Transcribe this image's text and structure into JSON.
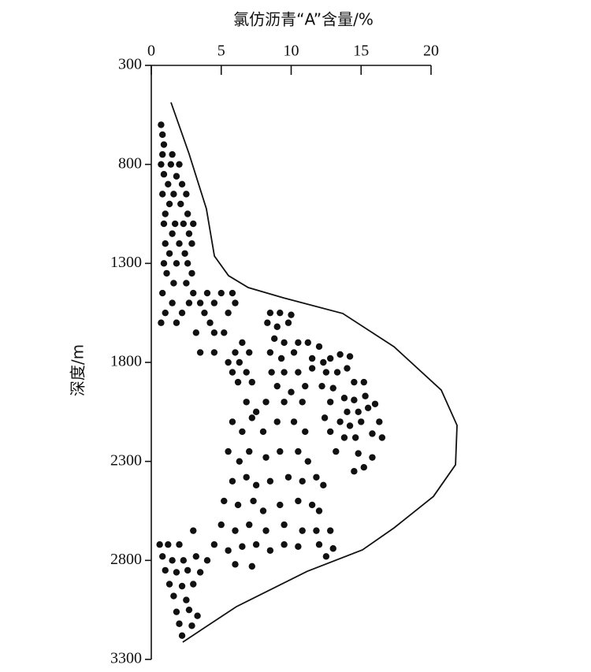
{
  "chart_data": {
    "type": "scatter",
    "title": "氯仿沥青“A”含量/%",
    "y_label": "深度/m",
    "xaxis_position": "top",
    "xlim": [
      0,
      20
    ],
    "xticks": [
      0,
      5,
      10,
      15,
      20
    ],
    "ylim": [
      3300,
      300
    ],
    "yticks": [
      300,
      800,
      1300,
      1800,
      2300,
      2800,
      3300
    ],
    "color": "#111111",
    "x": [
      0.7,
      0.8,
      0.9,
      0.8,
      1.5,
      0.7,
      1.4,
      2.0,
      0.9,
      1.8,
      1.2,
      2.2,
      0.8,
      1.6,
      2.5,
      1.3,
      2.1,
      1.0,
      2.6,
      0.9,
      1.7,
      2.3,
      3.0,
      1.5,
      2.7,
      1.0,
      2.0,
      2.9,
      1.3,
      2.4,
      0.9,
      1.8,
      2.6,
      1.1,
      2.9,
      1.6,
      2.5,
      0.8,
      3.0,
      1.5,
      2.7,
      1.0,
      2.2,
      0.7,
      1.8,
      3.5,
      4.0,
      3.8,
      4.5,
      5.0,
      4.2,
      5.5,
      5.8,
      6.0,
      3.2,
      4.5,
      5.2,
      3.5,
      4.5,
      6.0,
      6.5,
      5.5,
      6.3,
      7.0,
      5.8,
      6.8,
      6.2,
      7.2,
      8.5,
      9.2,
      10.0,
      8.3,
      9.0,
      9.8,
      8.8,
      9.5,
      10.5,
      11.2,
      8.5,
      9.3,
      10.2,
      11.5,
      12.0,
      8.6,
      9.5,
      10.5,
      11.5,
      12.3,
      9.0,
      10.0,
      11.0,
      8.2,
      9.5,
      10.8,
      7.5,
      6.8,
      12.8,
      13.5,
      14.2,
      12.5,
      13.3,
      14.0,
      12.2,
      13.0,
      14.5,
      15.2,
      13.8,
      14.5,
      15.3,
      14.0,
      14.8,
      15.5,
      16.0,
      13.5,
      14.2,
      15.0,
      16.3,
      12.8,
      13.8,
      14.6,
      15.8,
      16.5,
      13.2,
      14.8,
      15.8,
      14.5,
      15.2,
      12.4,
      12.8,
      5.8,
      6.5,
      7.2,
      8.0,
      9.0,
      10.2,
      11.0,
      5.5,
      6.3,
      7.0,
      8.2,
      9.2,
      10.5,
      11.2,
      5.8,
      6.8,
      7.5,
      8.5,
      9.8,
      10.8,
      11.8,
      12.3,
      5.2,
      6.2,
      7.3,
      8.0,
      9.2,
      10.5,
      11.5,
      12.0,
      5.0,
      6.0,
      7.0,
      8.2,
      9.5,
      10.8,
      11.8,
      12.8,
      4.5,
      5.5,
      6.5,
      7.5,
      8.5,
      9.5,
      10.5,
      12.0,
      13.0,
      12.5,
      6.0,
      7.2,
      4.0,
      3.0,
      0.6,
      1.2,
      2.0,
      0.8,
      1.5,
      2.3,
      3.2,
      1.0,
      1.8,
      2.6,
      3.5,
      1.3,
      2.2,
      3.0,
      1.6,
      2.5,
      1.8,
      2.7,
      3.3,
      2.0,
      2.9,
      2.2
    ],
    "values": [
      600,
      650,
      700,
      750,
      750,
      800,
      800,
      800,
      850,
      860,
      900,
      900,
      950,
      950,
      950,
      1000,
      1000,
      1050,
      1050,
      1100,
      1100,
      1100,
      1100,
      1150,
      1150,
      1200,
      1200,
      1200,
      1250,
      1250,
      1300,
      1300,
      1300,
      1350,
      1350,
      1400,
      1400,
      1450,
      1450,
      1500,
      1500,
      1550,
      1550,
      1600,
      1600,
      1500,
      1450,
      1550,
      1500,
      1450,
      1600,
      1550,
      1450,
      1500,
      1650,
      1650,
      1650,
      1750,
      1750,
      1750,
      1700,
      1800,
      1800,
      1750,
      1850,
      1850,
      1900,
      1900,
      1550,
      1550,
      1560,
      1600,
      1620,
      1600,
      1680,
      1700,
      1700,
      1700,
      1750,
      1780,
      1750,
      1780,
      1720,
      1850,
      1850,
      1850,
      1830,
      1800,
      1920,
      1950,
      1920,
      2000,
      2000,
      2000,
      2050,
      2000,
      1780,
      1760,
      1770,
      1850,
      1850,
      1830,
      1920,
      1930,
      1900,
      1900,
      1980,
      1990,
      1970,
      2050,
      2050,
      2030,
      2010,
      2100,
      2120,
      2100,
      2100,
      2150,
      2180,
      2180,
      2160,
      2180,
      2250,
      2260,
      2280,
      2350,
      2330,
      2080,
      2000,
      2100,
      2150,
      2080,
      2150,
      2100,
      2100,
      2150,
      2250,
      2300,
      2250,
      2280,
      2250,
      2250,
      2300,
      2400,
      2380,
      2420,
      2400,
      2380,
      2400,
      2380,
      2420,
      2500,
      2520,
      2500,
      2550,
      2520,
      2500,
      2520,
      2550,
      2620,
      2650,
      2620,
      2650,
      2620,
      2650,
      2650,
      2650,
      2720,
      2750,
      2730,
      2720,
      2750,
      2720,
      2730,
      2720,
      2740,
      2780,
      2820,
      2830,
      2800,
      2650,
      2720,
      2720,
      2720,
      2780,
      2800,
      2800,
      2780,
      2850,
      2860,
      2850,
      2860,
      2920,
      2930,
      2920,
      2980,
      3000,
      3060,
      3050,
      3080,
      3120,
      3130,
      3180
    ],
    "envelope": {
      "x": [
        1.41,
        2.7,
        3.94,
        4.51,
        5.52,
        6.93,
        9.46,
        13.69,
        17.35,
        20.73,
        21.86,
        21.75,
        20.17,
        17.35,
        15.1,
        11.15,
        6.08,
        2.25
      ],
      "values": [
        487,
        746,
        1024,
        1263,
        1362,
        1422,
        1474,
        1553,
        1721,
        1940,
        2118,
        2317,
        2477,
        2636,
        2747,
        2855,
        3034,
        3213
      ],
      "color": "#111111"
    }
  }
}
